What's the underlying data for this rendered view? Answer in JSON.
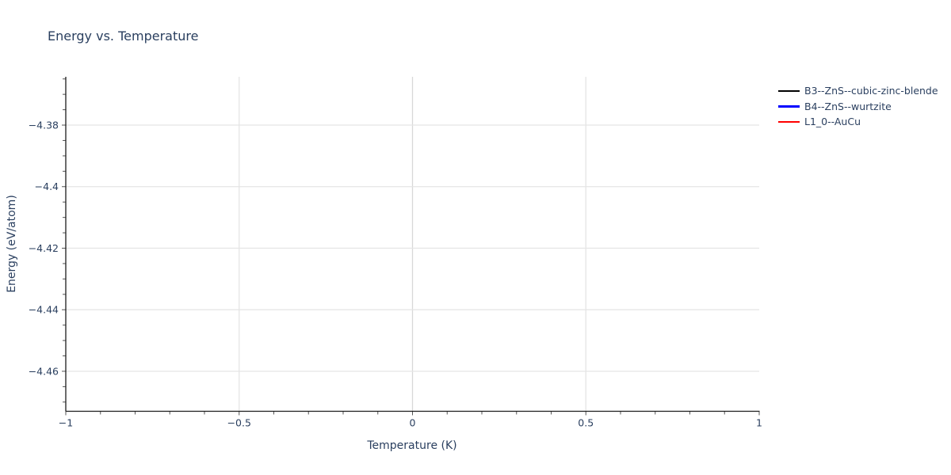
{
  "chart_data": {
    "type": "line",
    "title": "Energy vs. Temperature",
    "xlabel": "Temperature (K)",
    "ylabel": "Energy (eV/atom)",
    "xlim": [
      -1,
      1
    ],
    "ylim": [
      -4.473,
      -4.3643
    ],
    "x_major_ticks": [
      -1,
      -0.5,
      0,
      0.5,
      1
    ],
    "x_major_labels": [
      "−1",
      "−0.5",
      "0",
      "0.5",
      "1"
    ],
    "x_minor_step": 0.1,
    "y_major_ticks": [
      -4.38,
      -4.4,
      -4.42,
      -4.44,
      -4.46
    ],
    "y_major_labels": [
      "−4.38",
      "−4.4",
      "−4.42",
      "−4.44",
      "−4.46"
    ],
    "y_minor_step": 0.005,
    "grid": true,
    "legend_position": "top-right",
    "series": [
      {
        "name": "B3--ZnS--cubic-zinc-blende",
        "color": "#000000",
        "x": [],
        "y": []
      },
      {
        "name": "B4--ZnS--wurtzite",
        "color": "#0000ff",
        "x": [],
        "y": []
      },
      {
        "name": "L1_0--AuCu",
        "color": "#ff0000",
        "x": [],
        "y": []
      }
    ],
    "visible_data_note": "No series data points are visible inside the plotted axis ranges; only axes, gridlines and legend are shown."
  },
  "colors": {
    "text": "#2a3f5f",
    "grid": "#e5e5e5",
    "zeroline": "#d8d8d8",
    "spine": "#1c1c1c",
    "tick": "#555555"
  }
}
